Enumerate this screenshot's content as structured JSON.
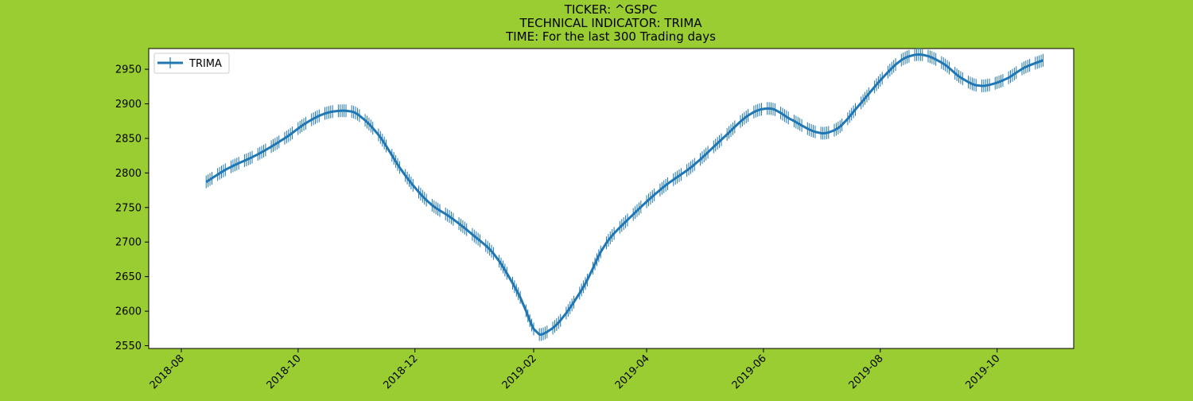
{
  "page": {
    "background": "#9acd32"
  },
  "chart_data": {
    "type": "line",
    "title_lines": [
      "TICKER:  ^GSPC",
      "TECHNICAL INDICATOR:  TRIMA",
      "TIME: For the last 300 Trading days"
    ],
    "xlabel": "",
    "ylabel": "",
    "x_axis": {
      "kind": "date",
      "range": [
        "2018-07-15",
        "2019-11-10"
      ],
      "ticks": [
        "2018-08-01",
        "2018-10-01",
        "2018-12-01",
        "2019-02-01",
        "2019-04-01",
        "2019-06-01",
        "2019-08-01",
        "2019-10-01"
      ],
      "tick_labels": [
        "2018-08",
        "2018-10",
        "2018-12",
        "2019-02",
        "2019-04",
        "2019-06",
        "2019-08",
        "2019-10"
      ],
      "tick_label_rotation_deg": 45
    },
    "y_axis": {
      "range": [
        2546,
        2980
      ],
      "ticks": [
        2550,
        2600,
        2650,
        2700,
        2750,
        2800,
        2850,
        2900,
        2950
      ],
      "tick_labels": [
        "2550",
        "2600",
        "2650",
        "2700",
        "2750",
        "2800",
        "2850",
        "2900",
        "2950"
      ]
    },
    "grid": false,
    "legend": {
      "placement": "top-left",
      "entries": [
        "TRIMA"
      ]
    },
    "series": [
      {
        "name": "TRIMA",
        "color": "#1f77b4",
        "marker": "|",
        "anchors": [
          {
            "date": "2018-08-14",
            "value": 2787
          },
          {
            "date": "2018-08-25",
            "value": 2806
          },
          {
            "date": "2018-09-10",
            "value": 2827
          },
          {
            "date": "2018-09-25",
            "value": 2852
          },
          {
            "date": "2018-10-05",
            "value": 2872
          },
          {
            "date": "2018-10-15",
            "value": 2886
          },
          {
            "date": "2018-10-25",
            "value": 2890
          },
          {
            "date": "2018-11-01",
            "value": 2885
          },
          {
            "date": "2018-11-12",
            "value": 2855
          },
          {
            "date": "2018-11-25",
            "value": 2800
          },
          {
            "date": "2018-12-08",
            "value": 2758
          },
          {
            "date": "2018-12-20",
            "value": 2735
          },
          {
            "date": "2018-12-31",
            "value": 2711
          },
          {
            "date": "2019-01-12",
            "value": 2680
          },
          {
            "date": "2019-01-25",
            "value": 2620
          },
          {
            "date": "2019-02-02",
            "value": 2570
          },
          {
            "date": "2019-02-08",
            "value": 2570
          },
          {
            "date": "2019-02-16",
            "value": 2590
          },
          {
            "date": "2019-02-28",
            "value": 2640
          },
          {
            "date": "2019-03-10",
            "value": 2695
          },
          {
            "date": "2019-03-25",
            "value": 2740
          },
          {
            "date": "2019-04-10",
            "value": 2780
          },
          {
            "date": "2019-04-25",
            "value": 2810
          },
          {
            "date": "2019-05-10",
            "value": 2848
          },
          {
            "date": "2019-05-25",
            "value": 2885
          },
          {
            "date": "2019-06-05",
            "value": 2893
          },
          {
            "date": "2019-06-15",
            "value": 2878
          },
          {
            "date": "2019-06-30",
            "value": 2858
          },
          {
            "date": "2019-07-10",
            "value": 2865
          },
          {
            "date": "2019-07-20",
            "value": 2895
          },
          {
            "date": "2019-08-03",
            "value": 2940
          },
          {
            "date": "2019-08-13",
            "value": 2965
          },
          {
            "date": "2019-08-23",
            "value": 2971
          },
          {
            "date": "2019-09-03",
            "value": 2958
          },
          {
            "date": "2019-09-12",
            "value": 2938
          },
          {
            "date": "2019-09-22",
            "value": 2926
          },
          {
            "date": "2019-10-05",
            "value": 2935
          },
          {
            "date": "2019-10-15",
            "value": 2952
          },
          {
            "date": "2019-10-25",
            "value": 2963
          }
        ]
      }
    ]
  }
}
